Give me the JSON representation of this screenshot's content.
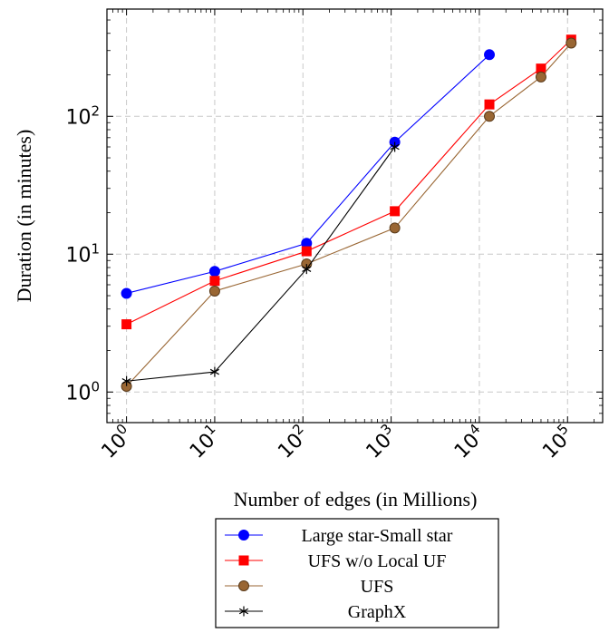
{
  "chart_data": {
    "type": "line",
    "title": "",
    "xlabel": "Number of edges (in Millions)",
    "ylabel": "Duration (in minutes)",
    "xscale": "log",
    "yscale": "log",
    "xlim": [
      0.6,
      250000
    ],
    "ylim": [
      0.6,
      600
    ],
    "grid": true,
    "legend_position": "below",
    "x_ticks": [
      {
        "base": "10",
        "exp": "0",
        "value": 1
      },
      {
        "base": "10",
        "exp": "1",
        "value": 10
      },
      {
        "base": "10",
        "exp": "2",
        "value": 100
      },
      {
        "base": "10",
        "exp": "3",
        "value": 1000
      },
      {
        "base": "10",
        "exp": "4",
        "value": 10000
      },
      {
        "base": "10",
        "exp": "5",
        "value": 100000
      }
    ],
    "y_ticks": [
      {
        "base": "10",
        "exp": "0",
        "value": 1
      },
      {
        "base": "10",
        "exp": "1",
        "value": 10
      },
      {
        "base": "10",
        "exp": "2",
        "value": 100
      }
    ],
    "series": [
      {
        "name": "Large star-Small star",
        "color": "#0000ff",
        "marker": "circle",
        "x": [
          1,
          10,
          110,
          1100,
          13000
        ],
        "y": [
          5.2,
          7.5,
          12,
          65,
          280
        ]
      },
      {
        "name": "UFS w/o Local UF",
        "color": "#ff0000",
        "marker": "square",
        "x": [
          1,
          10,
          110,
          1100,
          13000,
          50000,
          110000
        ],
        "y": [
          3.1,
          6.4,
          10.5,
          20.5,
          122,
          222,
          360
        ]
      },
      {
        "name": "UFS",
        "color": "#996633",
        "marker": "circle",
        "x": [
          1,
          10,
          110,
          1100,
          13000,
          50000,
          110000
        ],
        "y": [
          1.1,
          5.4,
          8.5,
          15.5,
          100,
          193,
          340
        ]
      },
      {
        "name": "GraphX",
        "color": "#000000",
        "marker": "star",
        "x": [
          1,
          10,
          110,
          1100
        ],
        "y": [
          1.2,
          1.4,
          7.8,
          60
        ]
      }
    ]
  }
}
